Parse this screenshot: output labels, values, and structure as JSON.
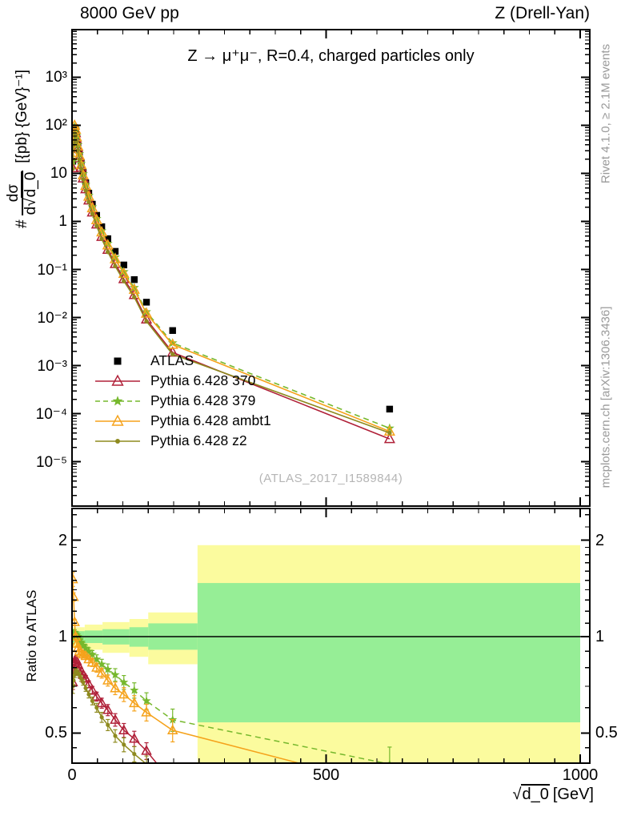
{
  "header": {
    "left": "8000 GeV pp",
    "right": "Z (Drell-Yan)"
  },
  "panel_title": "Z → μ⁺μ⁻, R=0.4, charged particles only",
  "watermark": "(ATLAS_2017_I1589844)",
  "side_notes": {
    "top_right": "Rivet 4.1.0, ≥ 2.1M events",
    "bottom_right": "mcplots.cern.ch [arXiv:1306.3436]"
  },
  "axis_labels": {
    "main_y_prefix": "#",
    "main_y_numerator": "dσ",
    "main_y_den_pre": "d√",
    "main_y_den_arg": "d_0",
    "main_y_units": "[{pb} {GeV}⁻¹]",
    "ratio_y": "Ratio to ATLAS",
    "x_sqrt_sign": "√",
    "x_sqrt_arg": "d_0",
    "x_units": "[GeV]"
  },
  "colors": {
    "frame": "#000000",
    "yellow_band": "#fbfb9e",
    "green_band": "#96ee96",
    "gray_text": "#9a9a9a",
    "watermark": "#b5b5b5"
  },
  "chart_data": [
    {
      "type": "line",
      "id": "main",
      "title": "Z → μ⁺μ⁻, R=0.4, charged particles only",
      "yscale": "log",
      "xlim": [
        0,
        1019
      ],
      "ylim": [
        1.2e-06,
        10000.0
      ],
      "grid": false,
      "legend_position": "inside-left-middle",
      "x": [
        1.5,
        3,
        5,
        7,
        9,
        11.5,
        14.5,
        18,
        22,
        27,
        33,
        40,
        48.5,
        58.5,
        70.5,
        85,
        102,
        122.5,
        146.5,
        198,
        625
      ],
      "yticks": [
        {
          "v": 1000,
          "label": "10³"
        },
        {
          "v": 100,
          "label": "10²"
        },
        {
          "v": 10,
          "label": "10"
        },
        {
          "v": 1,
          "label": "1"
        },
        {
          "v": 0.1,
          "label": "10⁻¹"
        },
        {
          "v": 0.01,
          "label": "10⁻²"
        },
        {
          "v": 0.001,
          "label": "10⁻³"
        },
        {
          "v": 0.0001,
          "label": "10⁻⁴"
        },
        {
          "v": 1e-05,
          "label": "10⁻⁵"
        }
      ],
      "series": [
        {
          "name": "ATLAS",
          "color": "#000000",
          "marker": "square",
          "line": "none",
          "values": [
            18,
            55,
            90,
            82,
            60,
            40,
            26,
            17,
            10.5,
            6.4,
            3.9,
            2.3,
            1.35,
            0.78,
            0.44,
            0.24,
            0.125,
            0.062,
            0.021,
            0.0054,
            0.000125
          ]
        },
        {
          "name": "Pythia 6.428 370",
          "color": "#b02038",
          "marker": "triangle",
          "line": "solid",
          "values": [
            13.0,
            42.9,
            74.7,
            69.7,
            50.4,
            32.8,
            20.8,
            13.3,
            7.98,
            4.74,
            2.77,
            1.56,
            0.878,
            0.484,
            0.26,
            0.132,
            0.0638,
            0.0298,
            0.00924,
            0.00189,
            3e-05
          ]
        },
        {
          "name": "Pythia 6.428 379",
          "color": "#76b82d",
          "marker": "star",
          "line": "dashed",
          "values": [
            18.0,
            56.1,
            92.7,
            83.6,
            60.6,
            40.0,
            25.5,
            16.3,
            9.87,
            5.89,
            3.51,
            2.02,
            1.15,
            0.64,
            0.348,
            0.182,
            0.09,
            0.0422,
            0.0132,
            0.00297,
            5e-05
          ]
        },
        {
          "name": "Pythia 6.428 ambt1",
          "color": "#f5a21b",
          "marker": "triangle",
          "line": "solid",
          "values": [
            27.2,
            73.2,
            99.9,
            82.0,
            57.0,
            36.8,
            23.4,
            15.1,
            9.24,
            5.57,
            3.32,
            1.91,
            1.08,
            0.601,
            0.321,
            0.166,
            0.0825,
            0.0384,
            0.0122,
            0.00275,
            4.3e-05
          ]
        },
        {
          "name": "Pythia 6.428 z2",
          "color": "#8e8a1f",
          "marker": "dot",
          "line": "solid",
          "values": [
            12.6,
            40.2,
            68.4,
            64.0,
            46.8,
            30.8,
            19.8,
            12.6,
            7.56,
            4.42,
            2.57,
            1.45,
            0.81,
            0.437,
            0.233,
            0.118,
            0.0575,
            0.0267,
            0.0084,
            0.00173,
            4e-05
          ]
        }
      ]
    },
    {
      "type": "ratio",
      "id": "ratio",
      "ylabel": "Ratio to ATLAS",
      "yscale": "log",
      "ylim": [
        0.403,
        2.51
      ],
      "unity_line": 1,
      "xlabel": "√d_0 [GeV]",
      "yticks": [
        {
          "v": 2,
          "label": "2"
        },
        {
          "v": 1,
          "label": "1"
        },
        {
          "v": 0.5,
          "label": "0.5"
        }
      ],
      "xticks": [
        {
          "v": 0,
          "label": "0"
        },
        {
          "v": 500,
          "label": "500"
        },
        {
          "v": 1000,
          "label": "1000"
        }
      ],
      "bands": [
        {
          "x0": 0,
          "x1": 25,
          "yellow": [
            0.93,
            1.07
          ],
          "green": [
            0.96,
            1.04
          ]
        },
        {
          "x0": 25,
          "x1": 60,
          "yellow": [
            0.91,
            1.09
          ],
          "green": [
            0.955,
            1.045
          ]
        },
        {
          "x0": 60,
          "x1": 113,
          "yellow": [
            0.89,
            1.11
          ],
          "green": [
            0.945,
            1.055
          ]
        },
        {
          "x0": 113,
          "x1": 150,
          "yellow": [
            0.865,
            1.135
          ],
          "green": [
            0.93,
            1.07
          ]
        },
        {
          "x0": 150,
          "x1": 247,
          "yellow": [
            0.82,
            1.19
          ],
          "green": [
            0.91,
            1.1
          ]
        },
        {
          "x0": 247,
          "x1": 1000,
          "yellow": [
            0.4,
            1.93
          ],
          "green": [
            0.54,
            1.47
          ]
        }
      ],
      "x": [
        1.5,
        3,
        5,
        7,
        9,
        11.5,
        14.5,
        18,
        22,
        27,
        33,
        40,
        48.5,
        58.5,
        70.5,
        85,
        102,
        122.5,
        146.5,
        198,
        625
      ],
      "err_frac": [
        0.05,
        0.03,
        0.02,
        0.018,
        0.018,
        0.018,
        0.018,
        0.02,
        0.02,
        0.022,
        0.025,
        0.028,
        0.032,
        0.036,
        0.04,
        0.045,
        0.05,
        0.055,
        0.06,
        0.08,
        0.13
      ],
      "series": [
        {
          "name": "Pythia 6.428 370",
          "color": "#b02038",
          "marker": "triangle",
          "line": "solid",
          "values": [
            0.72,
            0.78,
            0.83,
            0.85,
            0.84,
            0.82,
            0.8,
            0.78,
            0.76,
            0.74,
            0.71,
            0.68,
            0.65,
            0.62,
            0.59,
            0.55,
            0.51,
            0.48,
            0.44,
            0.35,
            0.24
          ]
        },
        {
          "name": "Pythia 6.428 379",
          "color": "#76b82d",
          "marker": "star",
          "line": "dashed",
          "values": [
            1.0,
            1.02,
            1.03,
            1.02,
            1.01,
            1.0,
            0.98,
            0.96,
            0.94,
            0.92,
            0.9,
            0.88,
            0.85,
            0.82,
            0.79,
            0.76,
            0.72,
            0.68,
            0.63,
            0.55,
            0.4
          ]
        },
        {
          "name": "Pythia 6.428 ambt1",
          "color": "#f5a21b",
          "marker": "triangle",
          "line": "solid",
          "values": [
            1.51,
            1.33,
            1.11,
            1.0,
            0.95,
            0.92,
            0.9,
            0.89,
            0.88,
            0.87,
            0.85,
            0.83,
            0.8,
            0.77,
            0.73,
            0.69,
            0.66,
            0.62,
            0.58,
            0.51,
            0.34
          ]
        },
        {
          "name": "Pythia 6.428 z2",
          "color": "#8e8a1f",
          "marker": "dot",
          "line": "solid",
          "values": [
            0.7,
            0.73,
            0.76,
            0.78,
            0.78,
            0.77,
            0.76,
            0.74,
            0.72,
            0.69,
            0.66,
            0.63,
            0.6,
            0.56,
            0.53,
            0.49,
            0.46,
            0.43,
            0.4,
            0.32,
            0.32
          ]
        }
      ]
    }
  ]
}
